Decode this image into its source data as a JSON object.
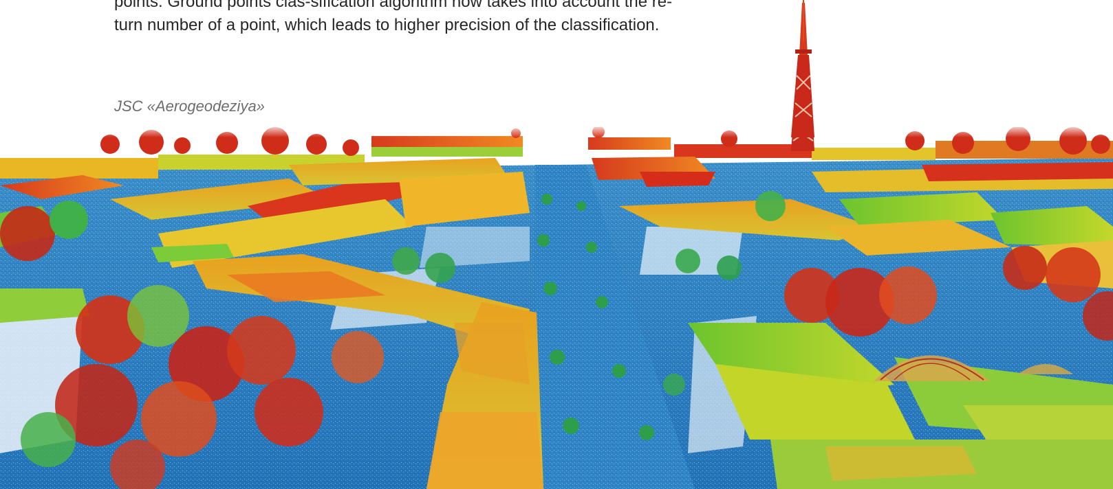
{
  "article": {
    "lines": [
      "points. Ground points clas-sification algorithm now takes into account the re-",
      "turn number of a point, which leads to higher precision of the classification."
    ],
    "caption": "JSC «Aerogeodeziya»"
  },
  "figure": {
    "description_icon": "lidar-point-cloud-city",
    "palette": {
      "ground": "#2a7fc4",
      "low": "#3fb04a",
      "mid": "#e8c21a",
      "high": "#d52a1c"
    }
  }
}
